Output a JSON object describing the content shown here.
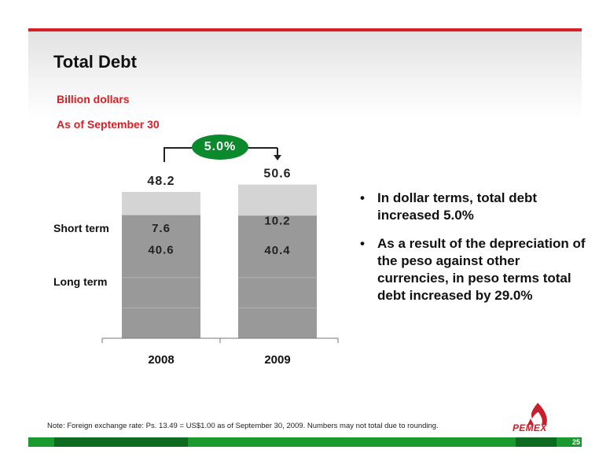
{
  "slide": {
    "title": "Total Debt",
    "subtitle_units": "Billion dollars",
    "subtitle_date": "As of September 30",
    "growth_badge": "5.0%",
    "bullets": [
      "In dollar terms, total debt increased 5.0%",
      "As a result of the depreciation of the peso against other currencies, in peso terms total debt increased by 29.0%"
    ],
    "note": "Note: Foreign exchange rate: Ps. 13.49 = US$1.00 as of September 30, 2009. Numbers may not total due to rounding.",
    "logo_text": "PEMEX",
    "page_number": "25",
    "colors": {
      "accent_red": "#d71f26",
      "badge_green": "#0a8a2c",
      "footer_green": "#1a9a2e",
      "long_term_bar": "#999999",
      "short_term_bar": "#d4d4d4"
    }
  },
  "chart_data": {
    "type": "bar",
    "stacked": true,
    "categories": [
      "2008",
      "2009"
    ],
    "series": [
      {
        "name": "Long term",
        "values": [
          40.6,
          40.4
        ]
      },
      {
        "name": "Short term",
        "values": [
          7.6,
          10.2
        ]
      }
    ],
    "totals": [
      48.2,
      50.6
    ],
    "total_labels": [
      "48.2",
      "50.6"
    ],
    "value_labels": {
      "long_term": [
        "40.6",
        "40.4"
      ],
      "short_term": [
        "7.6",
        "10.2"
      ]
    },
    "ylim": [
      0,
      60
    ],
    "grid": true,
    "legend": "left"
  }
}
